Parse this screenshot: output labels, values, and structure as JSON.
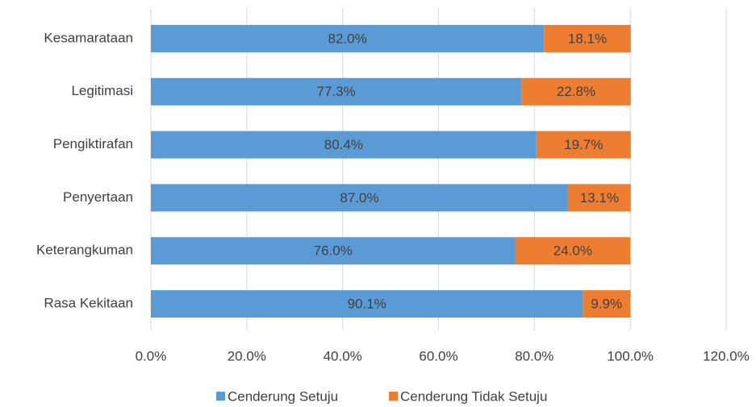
{
  "chart_data": {
    "type": "stacked_barh",
    "categories": [
      "Kesamarataan",
      "Legitimasi",
      "Pengiktirafan",
      "Penyertaan",
      "Keterangkuman",
      "Rasa Kekitaan"
    ],
    "series": [
      {
        "name": "Cenderung Setuju",
        "color": "#5b9bd5",
        "values": [
          82.0,
          77.3,
          80.4,
          87.0,
          76.0,
          90.1
        ],
        "value_labels": [
          "82.0%",
          "77.3%",
          "80.4%",
          "87.0%",
          "76.0%",
          "90.1%"
        ]
      },
      {
        "name": "Cenderung Tidak Setuju",
        "color": "#ed7d31",
        "values": [
          18.1,
          22.8,
          19.7,
          13.1,
          24.0,
          9.9
        ],
        "value_labels": [
          "18.1%",
          "22.8%",
          "19.7%",
          "13.1%",
          "24.0%",
          "9.9%"
        ]
      }
    ],
    "xlim": [
      0,
      120
    ],
    "xticks": [
      {
        "value": 0,
        "label": "0.0%"
      },
      {
        "value": 20,
        "label": "20.0%"
      },
      {
        "value": 40,
        "label": "40.0%"
      },
      {
        "value": 60,
        "label": "60.0%"
      },
      {
        "value": 80,
        "label": "80.0%"
      },
      {
        "value": 100,
        "label": "100.0%"
      },
      {
        "value": 120,
        "label": "120.0%"
      }
    ],
    "grid": true,
    "legend": "bottom"
  }
}
